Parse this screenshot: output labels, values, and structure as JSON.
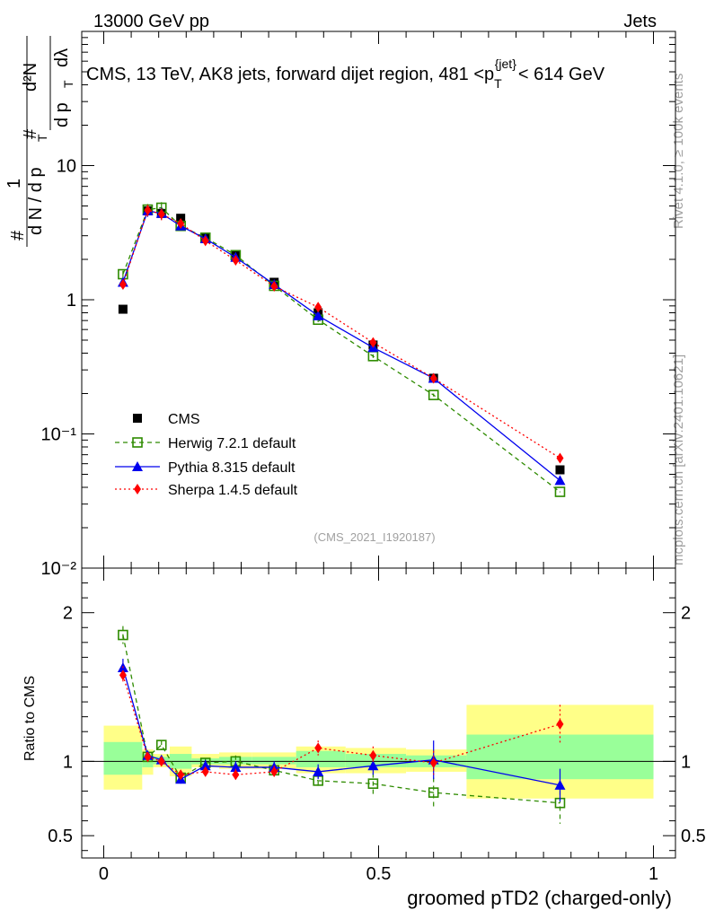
{
  "header": {
    "left": "13000 GeV pp",
    "right": "Jets"
  },
  "side_labels": {
    "rivet": "Rivet 4.1.0, ≥ 100k events",
    "mcplots": "mcplots.cern.ch [arXiv:2401.10621]"
  },
  "colors": {
    "cms": "#000000",
    "herwig": "#2e8b00",
    "pythia": "#0000ee",
    "sherpa": "#ff0000",
    "band_outer": "#ffff88",
    "band_inner": "#99ff99",
    "watermark": "#a0a0a0"
  },
  "chart_data": [
    {
      "type": "scatter",
      "panel": "main",
      "title": "CMS, 13 TeV, AK8 jets, forward dijet region, 481 <p_T^{jet}< 614 GeV",
      "title_parts": {
        "pre": "CMS, 13 TeV, AK8 jets, forward dijet region, 481 <p",
        "sub": "T",
        "sup": "{jet}",
        "post": "< 614 GeV"
      },
      "watermark": "(CMS_2021_I1920187)",
      "ylabel": "1/(dN/dp_T) d²N/(dp_T dλ)",
      "ylabel_parts": {
        "hash": "#",
        "one": "1",
        "den": "d N / d p",
        "sub": "T",
        "num": "d²N",
        "num_den": "d p",
        "lambda": "dλ"
      },
      "yscale": "log",
      "ylim": [
        0.01,
        100
      ],
      "xlim": [
        -0.04,
        1.04
      ],
      "ytick_labels": {
        "1": "1",
        "10": "10",
        "0.1": "10⁻¹",
        "0.01": "10⁻²"
      },
      "legend": {
        "position": "center-left",
        "entries": [
          "CMS",
          "Herwig 7.2.1 default",
          "Pythia 8.315 default",
          "Sherpa 1.4.5 default"
        ]
      },
      "series": [
        {
          "name": "CMS",
          "style": "square-filled",
          "x": [
            0.035,
            0.08,
            0.105,
            0.14,
            0.185,
            0.24,
            0.31,
            0.39,
            0.49,
            0.6,
            0.83
          ],
          "y": [
            0.85,
            4.6,
            4.4,
            4.05,
            2.9,
            2.15,
            1.35,
            0.8,
            0.46,
            0.26,
            0.054
          ]
        },
        {
          "name": "Herwig 7.2.1 default",
          "style": "square-open-dashed",
          "x": [
            0.035,
            0.08,
            0.105,
            0.14,
            0.185,
            0.24,
            0.31,
            0.39,
            0.49,
            0.6,
            0.83
          ],
          "y": [
            1.55,
            4.7,
            4.85,
            3.55,
            2.9,
            2.15,
            1.27,
            0.71,
            0.38,
            0.195,
            0.037
          ],
          "err": [
            0.06,
            0.1,
            0.1,
            0.07,
            0.06,
            0.05,
            0.04,
            0.04,
            0.03,
            0.025,
            0.007
          ]
        },
        {
          "name": "Pythia 8.315 default",
          "style": "triangle-solid",
          "x": [
            0.035,
            0.08,
            0.105,
            0.14,
            0.185,
            0.24,
            0.31,
            0.39,
            0.49,
            0.6,
            0.83
          ],
          "y": [
            1.35,
            4.6,
            4.4,
            3.55,
            2.85,
            2.07,
            1.3,
            0.76,
            0.44,
            0.26,
            0.045
          ],
          "err": [
            0.05,
            0.1,
            0.1,
            0.07,
            0.06,
            0.05,
            0.04,
            0.04,
            0.03,
            0.035,
            0.006
          ]
        },
        {
          "name": "Sherpa 1.4.5 default",
          "style": "diamond-dotted",
          "x": [
            0.035,
            0.08,
            0.105,
            0.14,
            0.185,
            0.24,
            0.31,
            0.39,
            0.49,
            0.6,
            0.83
          ],
          "y": [
            1.3,
            4.65,
            4.35,
            3.7,
            2.75,
            1.97,
            1.26,
            0.88,
            0.48,
            0.26,
            0.066
          ],
          "err": [
            0.05,
            0.1,
            0.1,
            0.07,
            0.06,
            0.05,
            0.04,
            0.04,
            0.03,
            0.025,
            0.007
          ]
        }
      ]
    },
    {
      "type": "line",
      "panel": "ratio",
      "ylabel": "Ratio to CMS",
      "xlabel": "groomed pTD2 (charged-only)",
      "ylim": [
        0.35,
        2.3
      ],
      "xlim": [
        -0.04,
        1.04
      ],
      "xticks": [
        0,
        0.5,
        1
      ],
      "xtick_labels": [
        "0",
        "0.5",
        "1"
      ],
      "yticks": [
        0.5,
        1,
        2
      ],
      "ytick_labels": [
        "0.5",
        "1",
        "2"
      ],
      "bands": [
        {
          "x0": 0.0,
          "x1": 0.07,
          "outer": [
            0.81,
            1.24
          ],
          "inner": [
            0.91,
            1.13
          ]
        },
        {
          "x0": 0.07,
          "x1": 0.09,
          "outer": [
            0.91,
            1.08
          ],
          "inner": [
            0.96,
            1.05
          ]
        },
        {
          "x0": 0.09,
          "x1": 0.12,
          "outer": [
            0.96,
            1.05
          ],
          "inner": [
            0.98,
            1.03
          ]
        },
        {
          "x0": 0.12,
          "x1": 0.16,
          "outer": [
            0.9,
            1.1
          ],
          "inner": [
            0.95,
            1.05
          ]
        },
        {
          "x0": 0.16,
          "x1": 0.21,
          "outer": [
            0.96,
            1.05
          ],
          "inner": [
            0.98,
            1.02
          ]
        },
        {
          "x0": 0.21,
          "x1": 0.27,
          "outer": [
            0.95,
            1.06
          ],
          "inner": [
            0.98,
            1.03
          ]
        },
        {
          "x0": 0.27,
          "x1": 0.35,
          "outer": [
            0.95,
            1.06
          ],
          "inner": [
            0.98,
            1.03
          ]
        },
        {
          "x0": 0.35,
          "x1": 0.44,
          "outer": [
            0.92,
            1.1
          ],
          "inner": [
            0.96,
            1.07
          ]
        },
        {
          "x0": 0.44,
          "x1": 0.55,
          "outer": [
            0.92,
            1.09
          ],
          "inner": [
            0.96,
            1.05
          ]
        },
        {
          "x0": 0.55,
          "x1": 0.66,
          "outer": [
            0.93,
            1.08
          ],
          "inner": [
            0.96,
            1.04
          ]
        },
        {
          "x0": 0.66,
          "x1": 1.0,
          "outer": [
            0.75,
            1.38
          ],
          "inner": [
            0.88,
            1.18
          ]
        }
      ],
      "series": [
        {
          "name": "Herwig 7.2.1 default",
          "x": [
            0.035,
            0.08,
            0.105,
            0.14,
            0.185,
            0.24,
            0.31,
            0.39,
            0.49,
            0.6,
            0.83
          ],
          "y": [
            1.85,
            1.03,
            1.11,
            0.89,
            0.99,
            1.0,
            0.94,
            0.87,
            0.85,
            0.79,
            0.72
          ],
          "err": [
            0.06,
            0.03,
            0.03,
            0.03,
            0.03,
            0.04,
            0.04,
            0.05,
            0.07,
            0.1,
            0.14
          ]
        },
        {
          "name": "Pythia 8.315 default",
          "x": [
            0.035,
            0.08,
            0.105,
            0.14,
            0.185,
            0.24,
            0.31,
            0.39,
            0.49,
            0.6,
            0.83
          ],
          "y": [
            1.63,
            1.04,
            1.01,
            0.88,
            0.97,
            0.96,
            0.96,
            0.93,
            0.97,
            1.01,
            0.84
          ],
          "err": [
            0.06,
            0.03,
            0.03,
            0.03,
            0.04,
            0.04,
            0.04,
            0.05,
            0.06,
            0.13,
            0.11
          ]
        },
        {
          "name": "Sherpa 1.4.5 default",
          "x": [
            0.035,
            0.08,
            0.105,
            0.14,
            0.185,
            0.24,
            0.31,
            0.39,
            0.49,
            0.6,
            0.83
          ],
          "y": [
            1.58,
            1.03,
            1.0,
            0.91,
            0.93,
            0.91,
            0.93,
            1.09,
            1.04,
            0.99,
            1.25
          ],
          "err": [
            0.06,
            0.03,
            0.03,
            0.03,
            0.03,
            0.04,
            0.04,
            0.05,
            0.06,
            0.08,
            0.13
          ]
        }
      ]
    }
  ]
}
